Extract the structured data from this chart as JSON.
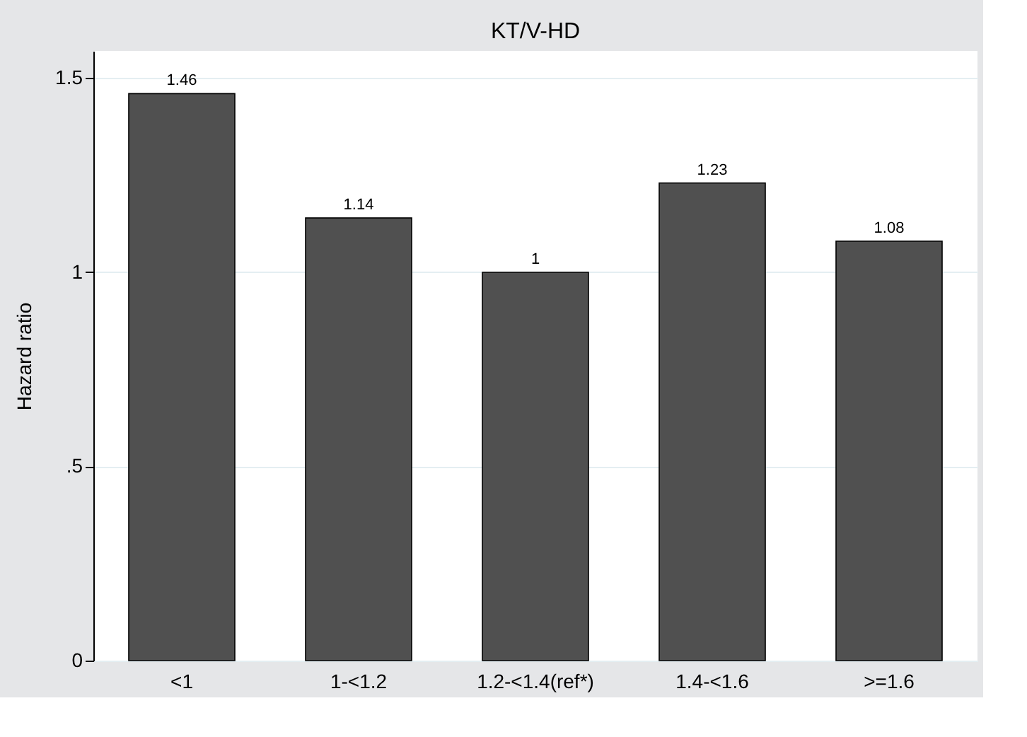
{
  "chart_data": {
    "type": "bar",
    "title": "KT/V-HD",
    "ylabel": "Hazard ratio",
    "categories": [
      "<1",
      "1-<1.2",
      "1.2-<1.4(ref*)",
      "1.4-<1.6",
      ">=1.6"
    ],
    "values": [
      1.46,
      1.14,
      1,
      1.23,
      1.08
    ],
    "color": "#505050",
    "ylim": [
      0,
      1.57
    ],
    "yticks": [
      0,
      {
        "value": 0.5,
        "label": ".5"
      },
      1,
      1.5
    ],
    "grid": "y",
    "data_labels": true
  }
}
